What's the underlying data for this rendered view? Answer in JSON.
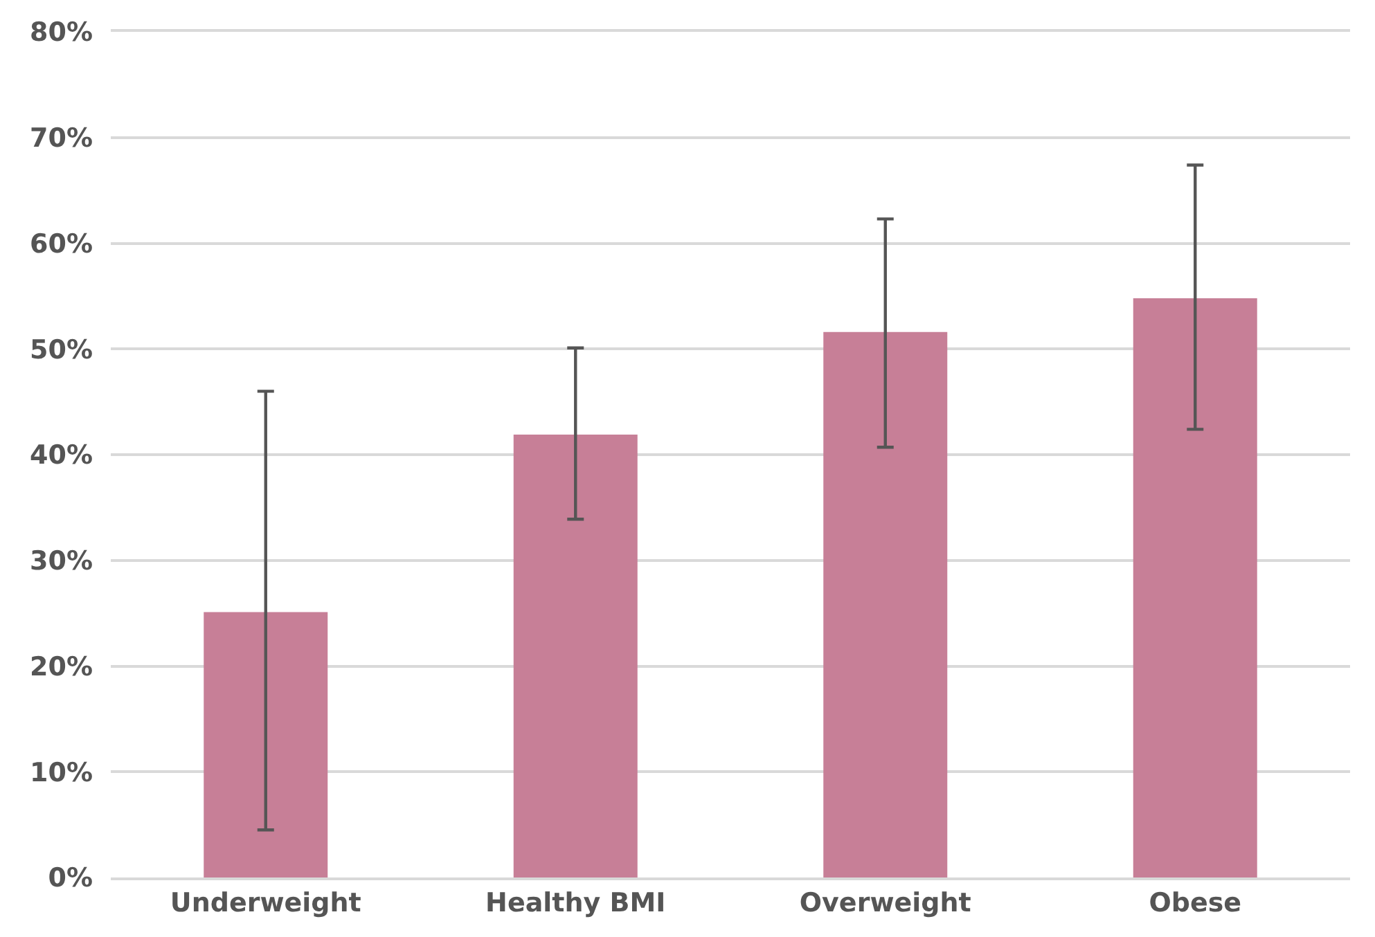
{
  "chart_data": {
    "type": "bar",
    "categories": [
      "Underweight",
      "Healthy BMI",
      "Overweight",
      "Obese"
    ],
    "values": [
      25.1,
      41.9,
      51.6,
      54.8
    ],
    "errors": [
      [
        4.5,
        46
      ],
      [
        33.9,
        50.1
      ],
      [
        40.7,
        62.3
      ],
      [
        42.4,
        67.4
      ]
    ],
    "color": "#c77f97",
    "ylim": [
      0,
      80
    ],
    "yticks": [
      {
        "value": 0,
        "label": "0%"
      },
      {
        "value": 10,
        "label": "10%"
      },
      {
        "value": 20,
        "label": "20%"
      },
      {
        "value": 30,
        "label": "30%"
      },
      {
        "value": 40,
        "label": "40%"
      },
      {
        "value": 50,
        "label": "50%"
      },
      {
        "value": 60,
        "label": "60%"
      },
      {
        "value": 70,
        "label": "70%"
      },
      {
        "value": 80,
        "label": "80%"
      }
    ],
    "grid": "y"
  }
}
